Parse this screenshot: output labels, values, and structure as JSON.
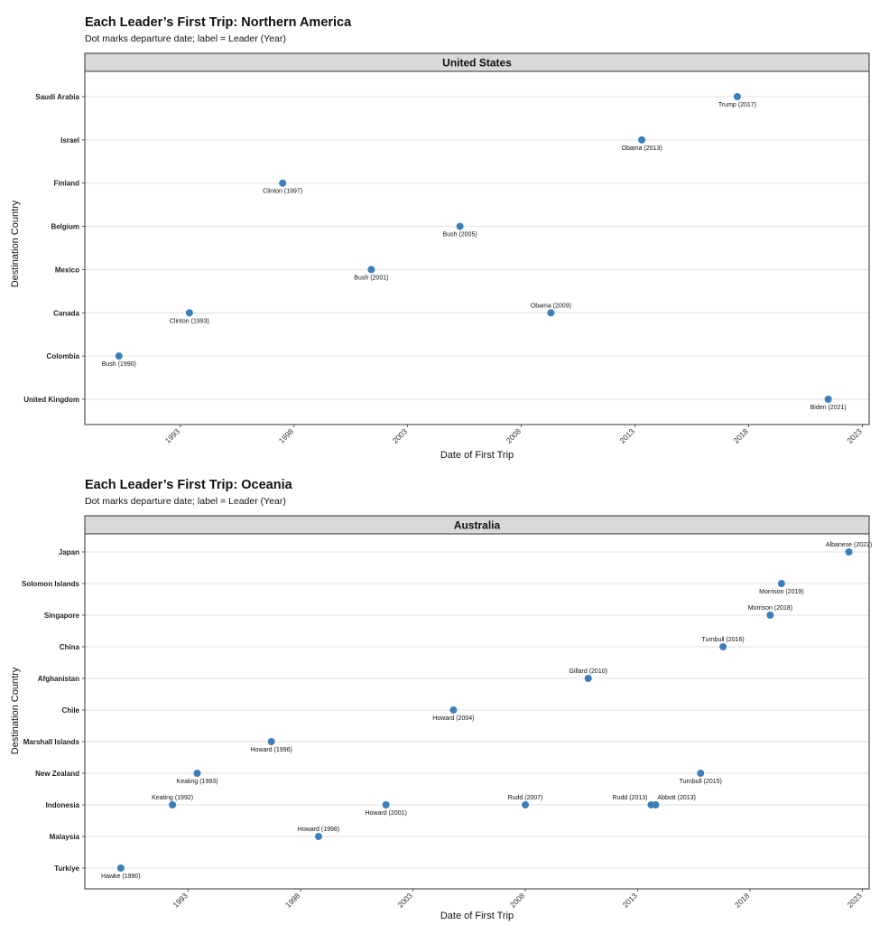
{
  "chart_data": [
    {
      "type": "scatter",
      "title": "Each Leader’s First Trip: Northern America",
      "subtitle": "Dot marks departure date; label = Leader (Year)",
      "facet": "United States",
      "xlabel": "Date of First Trip",
      "ylabel": "Destination Country",
      "xlim": [
        1988.8,
        2023.3
      ],
      "xticks": [
        "1993",
        "1998",
        "2003",
        "2008",
        "2013",
        "2018",
        "2023"
      ],
      "categories": [
        "United Kingdom",
        "Colombia",
        "Canada",
        "Mexico",
        "Belgium",
        "Finland",
        "Israel",
        "Saudi Arabia"
      ],
      "grid": true,
      "points": [
        {
          "x": 1990.3,
          "y": "Colombia",
          "label": "Bush (1990)",
          "pos": "below"
        },
        {
          "x": 1993.4,
          "y": "Canada",
          "label": "Clinton (1993)",
          "pos": "below"
        },
        {
          "x": 1997.5,
          "y": "Finland",
          "label": "Clinton (1997)",
          "pos": "below"
        },
        {
          "x": 2001.4,
          "y": "Mexico",
          "label": "Bush (2001)",
          "pos": "below"
        },
        {
          "x": 2005.3,
          "y": "Belgium",
          "label": "Bush (2005)",
          "pos": "below"
        },
        {
          "x": 2009.3,
          "y": "Canada",
          "label": "Obama (2009)",
          "pos": "above"
        },
        {
          "x": 2013.3,
          "y": "Israel",
          "label": "Obama (2013)",
          "pos": "below"
        },
        {
          "x": 2017.5,
          "y": "Saudi Arabia",
          "label": "Trump (2017)",
          "pos": "below"
        },
        {
          "x": 2021.5,
          "y": "United Kingdom",
          "label": "Biden (2021)",
          "pos": "below"
        }
      ]
    },
    {
      "type": "scatter",
      "title": "Each Leader’s First Trip: Oceania",
      "subtitle": "Dot marks departure date; label = Leader (Year)",
      "facet": "Australia",
      "xlabel": "Date of First Trip",
      "ylabel": "Destination Country",
      "xlim": [
        1988.4,
        2023.3
      ],
      "xticks": [
        "1993",
        "1998",
        "2003",
        "2008",
        "2013",
        "2018",
        "2023"
      ],
      "categories": [
        "Turkiye",
        "Malaysia",
        "Indonesia",
        "New Zealand",
        "Marshall Islands",
        "Chile",
        "Afghanistan",
        "China",
        "Singapore",
        "Solomon Islands",
        "Japan"
      ],
      "grid": true,
      "points": [
        {
          "x": 1990.0,
          "y": "Turkiye",
          "label": "Hawke (1990)",
          "pos": "below"
        },
        {
          "x": 1992.3,
          "y": "Indonesia",
          "label": "Keating (1992)",
          "pos": "above"
        },
        {
          "x": 1993.4,
          "y": "New Zealand",
          "label": "Keating (1993)",
          "pos": "below"
        },
        {
          "x": 1996.7,
          "y": "Marshall Islands",
          "label": "Howard (1996)",
          "pos": "below"
        },
        {
          "x": 1998.8,
          "y": "Malaysia",
          "label": "Howard (1998)",
          "pos": "above"
        },
        {
          "x": 2001.8,
          "y": "Indonesia",
          "label": "Howard (2001)",
          "pos": "below"
        },
        {
          "x": 2004.8,
          "y": "Chile",
          "label": "Howard (2004)",
          "pos": "below"
        },
        {
          "x": 2008.0,
          "y": "Indonesia",
          "label": "Rudd (2007)",
          "pos": "above"
        },
        {
          "x": 2010.8,
          "y": "Afghanistan",
          "label": "Gillard (2010)",
          "pos": "above"
        },
        {
          "x": 2013.6,
          "y": "Indonesia",
          "label": "Rudd (2013)",
          "pos": "above-left"
        },
        {
          "x": 2013.8,
          "y": "Indonesia",
          "label": "Abbott (2013)",
          "pos": "above-right"
        },
        {
          "x": 2015.8,
          "y": "New Zealand",
          "label": "Turnbull (2015)",
          "pos": "below"
        },
        {
          "x": 2016.8,
          "y": "China",
          "label": "Turnbull (2016)",
          "pos": "above"
        },
        {
          "x": 2018.9,
          "y": "Singapore",
          "label": "Morrison (2018)",
          "pos": "above"
        },
        {
          "x": 2019.4,
          "y": "Solomon Islands",
          "label": "Morrison (2019)",
          "pos": "below"
        },
        {
          "x": 2022.4,
          "y": "Japan",
          "label": "Albanese (2022)",
          "pos": "above"
        }
      ]
    }
  ],
  "colors": {
    "point": "#3e7fba",
    "strip_fill": "#d9d9d9",
    "grid": "#e0e0e0",
    "border": "#333333"
  }
}
